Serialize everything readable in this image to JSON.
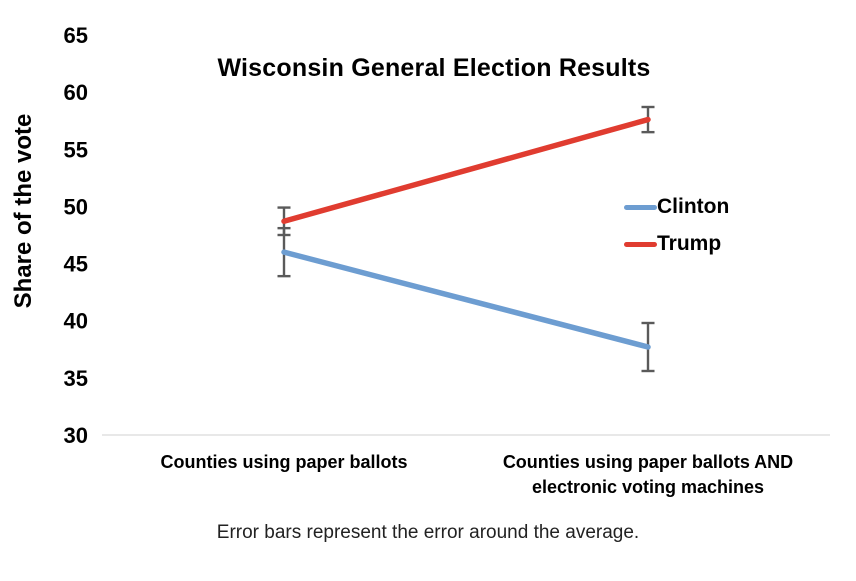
{
  "chart_data": {
    "type": "line",
    "title": "Wisconsin General Election Results",
    "ylabel": "Share of the vote",
    "xlabel": "",
    "categories": [
      "Counties using paper ballots",
      "Counties using paper ballots AND electronic voting machines"
    ],
    "series": [
      {
        "name": "Clinton",
        "color": "#6D9DD1",
        "values": [
          46.0,
          37.7
        ],
        "error": [
          2.1,
          2.1
        ]
      },
      {
        "name": "Trump",
        "color": "#E03C30",
        "values": [
          48.7,
          57.6
        ],
        "error": [
          1.2,
          1.1
        ]
      }
    ],
    "ylim": [
      30,
      65
    ],
    "yticks": [
      65,
      60,
      55,
      50,
      45,
      40,
      35,
      30
    ],
    "grid": false,
    "legend_position": "right",
    "error_bar_color": "#5A5A5A",
    "axis_line_color": "#D9D9D9",
    "caption": "Error bars represent the error around the average."
  }
}
